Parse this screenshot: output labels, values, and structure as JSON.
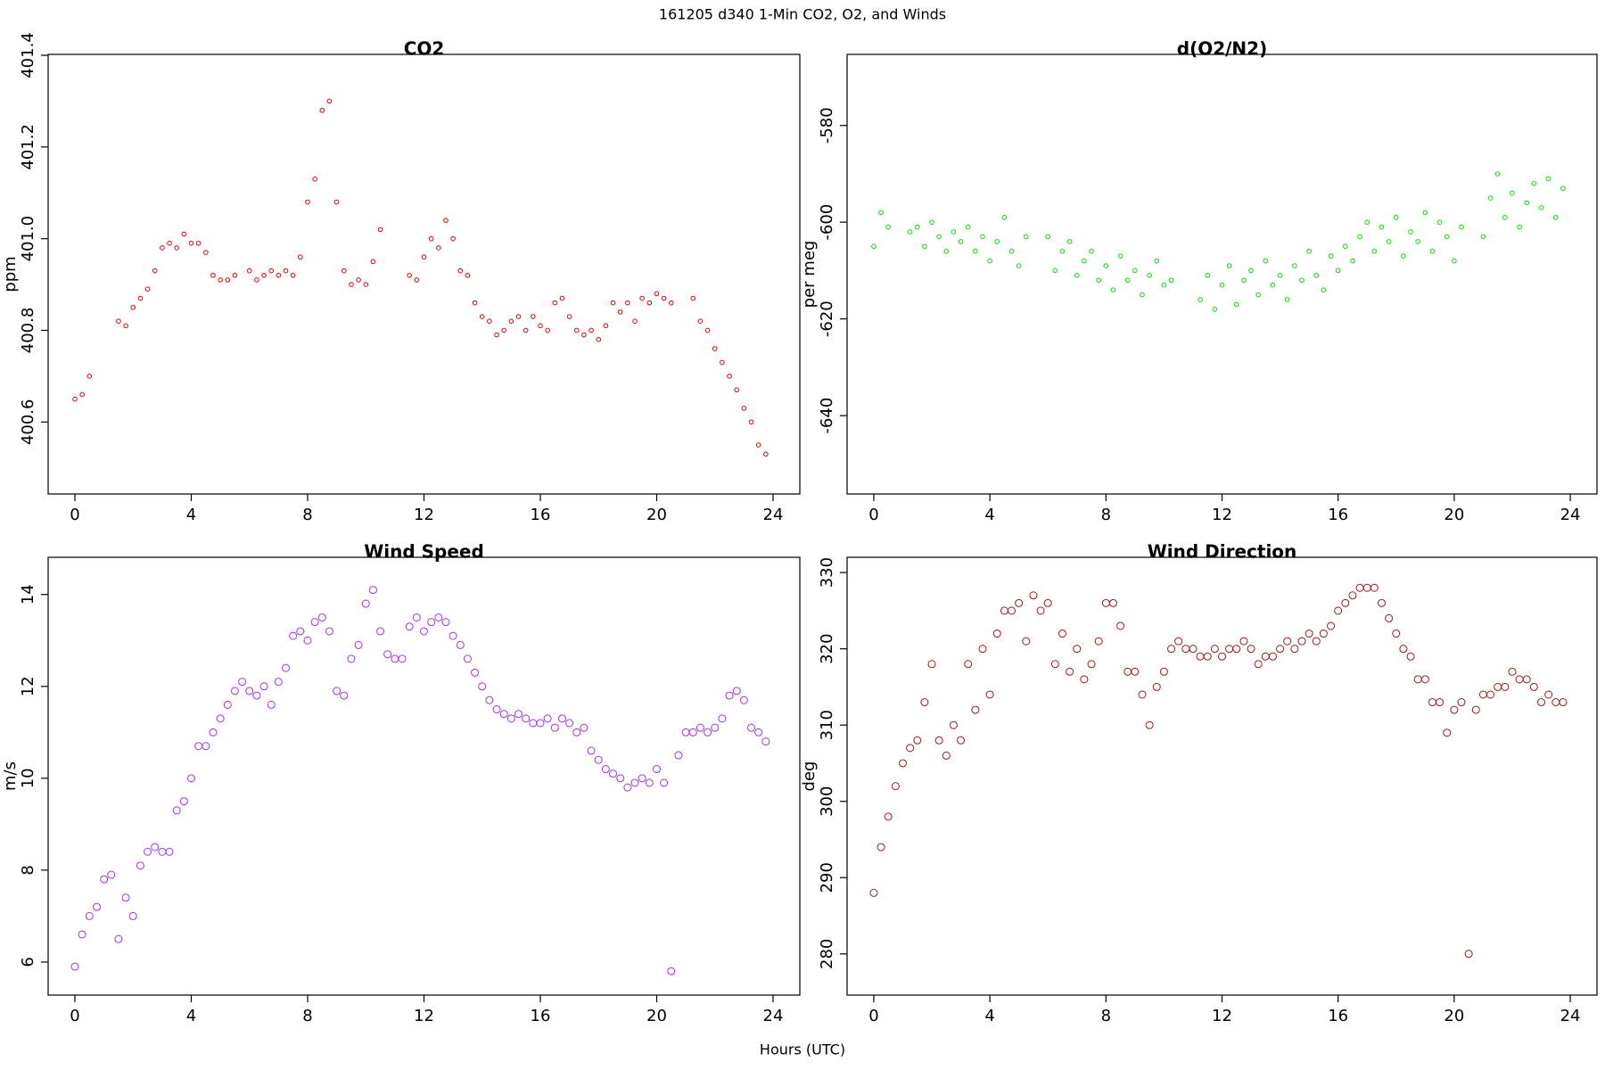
{
  "title": "161205   d340   1-Min CO2, O2, and Winds",
  "xlabel": "Hours (UTC)",
  "chart_data": [
    {
      "type": "scatter",
      "title": "CO2",
      "ylabel": "ppm",
      "color": "#e00000",
      "size": 2.3,
      "x": [
        0,
        0.25,
        0.5,
        0.75,
        1,
        1.25,
        1.5,
        1.75,
        2,
        2.25,
        2.5,
        2.75,
        3,
        3.25,
        3.5,
        3.75,
        4,
        4.25,
        4.5,
        4.75,
        5,
        5.25,
        5.5,
        5.75,
        6,
        6.25,
        6.5,
        6.75,
        7,
        7.25,
        7.5,
        7.75,
        8,
        8.25,
        8.5,
        8.75,
        9,
        9.25,
        9.5,
        9.75,
        10,
        10.25,
        10.5,
        10.75,
        11,
        11.25,
        11.5,
        11.75,
        12,
        12.25,
        12.5,
        12.75,
        13,
        13.25,
        13.5,
        13.75,
        14,
        14.25,
        14.5,
        14.75,
        15,
        15.25,
        15.5,
        15.75,
        16,
        16.25,
        16.5,
        16.75,
        17,
        17.25,
        17.5,
        17.75,
        18,
        18.25,
        18.5,
        18.75,
        19,
        19.25,
        19.5,
        19.75,
        20,
        20.25,
        20.5,
        20.75,
        21,
        21.25,
        21.5,
        21.75,
        22,
        22.25,
        22.5,
        22.75,
        23,
        23.25,
        23.5,
        23.75
      ],
      "values": [
        400.65,
        400.66,
        400.7,
        null,
        null,
        null,
        400.82,
        400.81,
        400.85,
        400.87,
        400.89,
        400.93,
        400.98,
        400.99,
        400.98,
        401.01,
        400.99,
        400.99,
        400.97,
        400.92,
        400.91,
        400.91,
        400.92,
        null,
        400.93,
        400.91,
        400.92,
        400.93,
        400.92,
        400.93,
        400.92,
        400.96,
        401.08,
        401.13,
        401.28,
        401.3,
        401.08,
        400.93,
        400.9,
        400.91,
        400.9,
        400.95,
        401.02,
        null,
        null,
        null,
        400.92,
        400.91,
        400.96,
        401.0,
        400.98,
        401.04,
        401.0,
        400.93,
        400.92,
        400.86,
        400.83,
        400.82,
        400.79,
        400.8,
        400.82,
        400.83,
        400.8,
        400.83,
        400.81,
        400.8,
        400.86,
        400.87,
        400.83,
        400.8,
        400.79,
        400.8,
        400.78,
        400.81,
        400.86,
        400.84,
        400.86,
        400.82,
        400.87,
        400.86,
        400.88,
        400.87,
        400.86,
        null,
        null,
        400.87,
        400.82,
        400.8,
        400.76,
        400.73,
        400.7,
        400.67,
        400.63,
        400.6,
        400.55,
        400.53
      ],
      "xlim": [
        -0.92,
        24.92
      ],
      "xticks": [
        0,
        4,
        8,
        12,
        16,
        20,
        24
      ],
      "ylim": [
        400.443,
        401.402
      ],
      "yticks": [
        400.6,
        400.8,
        {
          "value": 401,
          "label": "401.0"
        },
        401.2,
        401.4
      ]
    },
    {
      "type": "scatter",
      "title": "d(O2/N2)",
      "ylabel": "per meg",
      "color": "#00e000",
      "size": 2.3,
      "x": [
        0,
        0.25,
        0.5,
        0.75,
        1,
        1.25,
        1.5,
        1.75,
        2,
        2.25,
        2.5,
        2.75,
        3,
        3.25,
        3.5,
        3.75,
        4,
        4.25,
        4.5,
        4.75,
        5,
        5.25,
        5.5,
        5.75,
        6,
        6.25,
        6.5,
        6.75,
        7,
        7.25,
        7.5,
        7.75,
        8,
        8.25,
        8.5,
        8.75,
        9,
        9.25,
        9.5,
        9.75,
        10,
        10.25,
        10.5,
        10.75,
        11,
        11.25,
        11.5,
        11.75,
        12,
        12.25,
        12.5,
        12.75,
        13,
        13.25,
        13.5,
        13.75,
        14,
        14.25,
        14.5,
        14.75,
        15,
        15.25,
        15.5,
        15.75,
        16,
        16.25,
        16.5,
        16.75,
        17,
        17.25,
        17.5,
        17.75,
        18,
        18.25,
        18.5,
        18.75,
        19,
        19.25,
        19.5,
        19.75,
        20,
        20.25,
        20.5,
        20.75,
        21,
        21.25,
        21.5,
        21.75,
        22,
        22.25,
        22.5,
        22.75,
        23,
        23.25,
        23.5,
        23.75
      ],
      "values": [
        -605,
        -598,
        -601,
        null,
        null,
        -602,
        -601,
        -605,
        -600,
        -603,
        -606,
        -602,
        -604,
        -601,
        -606,
        -603,
        -608,
        -604,
        -599,
        -606,
        -609,
        -603,
        null,
        null,
        -603,
        -610,
        -606,
        -604,
        -611,
        -608,
        -606,
        -612,
        -609,
        -614,
        -607,
        -612,
        -610,
        -615,
        -611,
        -608,
        -613,
        -612,
        null,
        null,
        null,
        -616,
        -611,
        -618,
        -613,
        -609,
        -617,
        -612,
        -610,
        -615,
        -608,
        -613,
        -611,
        -616,
        -609,
        -612,
        -606,
        -611,
        -614,
        -607,
        -610,
        -605,
        -608,
        -603,
        -600,
        -606,
        -601,
        -604,
        -599,
        -607,
        -602,
        -604,
        -598,
        -606,
        -600,
        -603,
        -608,
        -601,
        null,
        null,
        -603,
        -595,
        -590,
        -599,
        -594,
        -601,
        -596,
        -592,
        -597,
        -591,
        -599,
        -593
      ],
      "xlim": [
        -0.92,
        24.92
      ],
      "xticks": [
        0,
        4,
        8,
        12,
        16,
        20,
        24
      ],
      "ylim": [
        -656.2,
        -565.3
      ],
      "yticks": [
        -640,
        -620,
        -600,
        -580
      ]
    },
    {
      "type": "scatter",
      "title": "Wind Speed",
      "ylabel": "m/s",
      "color": "#a030f0",
      "size": 4,
      "x": [
        0,
        0.25,
        0.5,
        0.75,
        1,
        1.25,
        1.5,
        1.75,
        2,
        2.25,
        2.5,
        2.75,
        3,
        3.25,
        3.5,
        3.75,
        4,
        4.25,
        4.5,
        4.75,
        5,
        5.25,
        5.5,
        5.75,
        6,
        6.25,
        6.5,
        6.75,
        7,
        7.25,
        7.5,
        7.75,
        8,
        8.25,
        8.5,
        8.75,
        9,
        9.25,
        9.5,
        9.75,
        10,
        10.25,
        10.5,
        10.75,
        11,
        11.25,
        11.5,
        11.75,
        12,
        12.25,
        12.5,
        12.75,
        13,
        13.25,
        13.5,
        13.75,
        14,
        14.25,
        14.5,
        14.75,
        15,
        15.25,
        15.5,
        15.75,
        16,
        16.25,
        16.5,
        16.75,
        17,
        17.25,
        17.5,
        17.75,
        18,
        18.25,
        18.5,
        18.75,
        19,
        19.25,
        19.5,
        19.75,
        20,
        20.25,
        20.5,
        20.75,
        21,
        21.25,
        21.5,
        21.75,
        22,
        22.25,
        22.5,
        22.75,
        23,
        23.25,
        23.5,
        23.75
      ],
      "values": [
        5.9,
        6.6,
        7.0,
        7.2,
        7.8,
        7.9,
        6.5,
        7.4,
        7.0,
        8.1,
        8.4,
        8.5,
        8.4,
        8.4,
        9.3,
        9.5,
        10.0,
        10.7,
        10.7,
        11.0,
        11.3,
        11.6,
        11.9,
        12.1,
        11.9,
        11.8,
        12.0,
        11.6,
        12.1,
        12.4,
        13.1,
        13.2,
        13.0,
        13.4,
        13.5,
        13.2,
        11.9,
        11.8,
        12.6,
        12.9,
        13.8,
        14.1,
        13.2,
        12.7,
        12.6,
        12.6,
        13.3,
        13.5,
        13.2,
        13.4,
        13.5,
        13.4,
        13.1,
        12.9,
        12.6,
        12.3,
        12.0,
        11.7,
        11.5,
        11.4,
        11.3,
        11.4,
        11.3,
        11.2,
        11.2,
        11.3,
        11.1,
        11.3,
        11.2,
        11.0,
        11.1,
        10.6,
        10.4,
        10.2,
        10.1,
        10.0,
        9.8,
        9.9,
        10.0,
        9.9,
        10.2,
        9.9,
        5.8,
        10.5,
        11.0,
        11.0,
        11.1,
        11.0,
        11.1,
        11.3,
        11.8,
        11.9,
        11.7,
        11.1,
        11.0,
        10.8
      ],
      "xlim": [
        -0.92,
        24.92
      ],
      "xticks": [
        0,
        4,
        8,
        12,
        16,
        20,
        24
      ],
      "ylim": [
        5.28,
        14.81
      ],
      "yticks": [
        6,
        8,
        10,
        12,
        14
      ]
    },
    {
      "type": "scatter",
      "title": "Wind Direction",
      "ylabel": "deg",
      "color": "#9a1a1a",
      "size": 4,
      "x": [
        0,
        0.25,
        0.5,
        0.75,
        1,
        1.25,
        1.5,
        1.75,
        2,
        2.25,
        2.5,
        2.75,
        3,
        3.25,
        3.5,
        3.75,
        4,
        4.25,
        4.5,
        4.75,
        5,
        5.25,
        5.5,
        5.75,
        6,
        6.25,
        6.5,
        6.75,
        7,
        7.25,
        7.5,
        7.75,
        8,
        8.25,
        8.5,
        8.75,
        9,
        9.25,
        9.5,
        9.75,
        10,
        10.25,
        10.5,
        10.75,
        11,
        11.25,
        11.5,
        11.75,
        12,
        12.25,
        12.5,
        12.75,
        13,
        13.25,
        13.5,
        13.75,
        14,
        14.25,
        14.5,
        14.75,
        15,
        15.25,
        15.5,
        15.75,
        16,
        16.25,
        16.5,
        16.75,
        17,
        17.25,
        17.5,
        17.75,
        18,
        18.25,
        18.5,
        18.75,
        19,
        19.25,
        19.5,
        19.75,
        20,
        20.25,
        20.5,
        20.75,
        21,
        21.25,
        21.5,
        21.75,
        22,
        22.25,
        22.5,
        22.75,
        23,
        23.25,
        23.5,
        23.75
      ],
      "values": [
        288,
        294,
        298,
        302,
        305,
        307,
        308,
        313,
        318,
        308,
        306,
        310,
        308,
        318,
        312,
        320,
        314,
        322,
        325,
        325,
        326,
        321,
        327,
        325,
        326,
        318,
        322,
        317,
        320,
        316,
        318,
        321,
        326,
        326,
        323,
        317,
        317,
        314,
        310,
        315,
        317,
        320,
        321,
        320,
        320,
        319,
        319,
        320,
        319,
        320,
        320,
        321,
        320,
        318,
        319,
        319,
        320,
        321,
        320,
        321,
        322,
        321,
        322,
        323,
        325,
        326,
        327,
        328,
        328,
        328,
        326,
        324,
        322,
        320,
        319,
        316,
        316,
        313,
        313,
        309,
        312,
        313,
        280,
        312,
        314,
        314,
        315,
        315,
        317,
        316,
        316,
        315,
        313,
        314,
        313,
        313
      ],
      "xlim": [
        -0.92,
        24.92
      ],
      "xticks": [
        0,
        4,
        8,
        12,
        16,
        20,
        24
      ],
      "ylim": [
        274.6,
        332.0
      ],
      "yticks": [
        280,
        290,
        300,
        310,
        320,
        330
      ]
    }
  ]
}
